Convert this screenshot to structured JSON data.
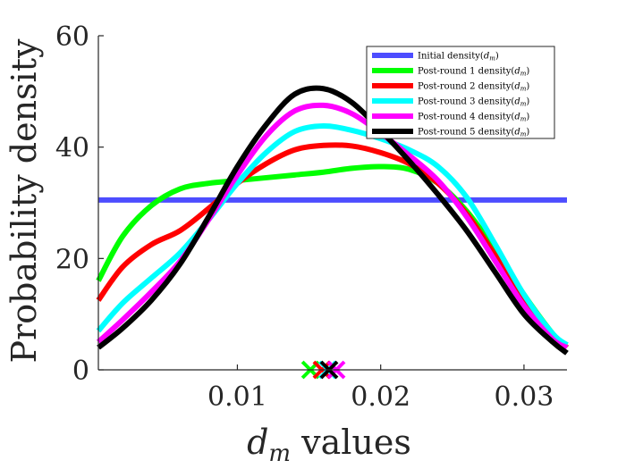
{
  "chart_data": {
    "type": "line",
    "xlabel_symbol": "d",
    "xlabel_subscript": "m",
    "xlabel_rest": " values",
    "ylabel": "Probability density",
    "xlim": [
      0.0003,
      0.033
    ],
    "ylim": [
      0,
      60
    ],
    "xticks": [
      {
        "value": 0.01,
        "label": "0.01"
      },
      {
        "value": 0.02,
        "label": "0.02"
      },
      {
        "value": 0.03,
        "label": "0.03"
      }
    ],
    "yticks": [
      {
        "value": 0,
        "label": "0"
      },
      {
        "value": 20,
        "label": "20"
      },
      {
        "value": 40,
        "label": "40"
      },
      {
        "value": 60,
        "label": "60"
      }
    ],
    "grid": false,
    "legend_position": "top-right",
    "series": [
      {
        "name": "Initial density(d_m)",
        "legend_prefix": "Initial density(",
        "color": "#4d4dff",
        "points": [
          [
            0.0003,
            30.5
          ],
          [
            0.033,
            30.5
          ]
        ]
      },
      {
        "name": "Post-round 1 density(d_m)",
        "legend_prefix": "Post-round 1 density(",
        "color": "#00ff00",
        "points": [
          [
            0.0003,
            16
          ],
          [
            0.002,
            24
          ],
          [
            0.004,
            29.5
          ],
          [
            0.006,
            32.5
          ],
          [
            0.008,
            33.5
          ],
          [
            0.01,
            34
          ],
          [
            0.012,
            34.5
          ],
          [
            0.014,
            35
          ],
          [
            0.016,
            35.5
          ],
          [
            0.018,
            36.2
          ],
          [
            0.02,
            36.5
          ],
          [
            0.022,
            36
          ],
          [
            0.024,
            33.5
          ],
          [
            0.026,
            28.5
          ],
          [
            0.028,
            21.5
          ],
          [
            0.03,
            13.5
          ],
          [
            0.032,
            6.5
          ],
          [
            0.033,
            4
          ]
        ]
      },
      {
        "name": "Post-round 2 density(d_m)",
        "legend_prefix": "Post-round 2 density(",
        "color": "#ff0000",
        "points": [
          [
            0.0003,
            12.5
          ],
          [
            0.002,
            18.5
          ],
          [
            0.004,
            22.5
          ],
          [
            0.006,
            25
          ],
          [
            0.008,
            29
          ],
          [
            0.01,
            33.5
          ],
          [
            0.012,
            37
          ],
          [
            0.014,
            39.5
          ],
          [
            0.016,
            40.3
          ],
          [
            0.018,
            40.2
          ],
          [
            0.02,
            39
          ],
          [
            0.022,
            37
          ],
          [
            0.024,
            33.5
          ],
          [
            0.026,
            28
          ],
          [
            0.028,
            20.5
          ],
          [
            0.03,
            12.5
          ],
          [
            0.032,
            6
          ],
          [
            0.033,
            4
          ]
        ]
      },
      {
        "name": "Post-round 3 density(d_m)",
        "legend_prefix": "Post-round 3 density(",
        "color": "#00ffff",
        "points": [
          [
            0.0003,
            7
          ],
          [
            0.002,
            12
          ],
          [
            0.004,
            16.5
          ],
          [
            0.006,
            21
          ],
          [
            0.008,
            27
          ],
          [
            0.01,
            33.5
          ],
          [
            0.012,
            39
          ],
          [
            0.014,
            42.8
          ],
          [
            0.016,
            43.8
          ],
          [
            0.018,
            43
          ],
          [
            0.02,
            41.5
          ],
          [
            0.022,
            39.5
          ],
          [
            0.024,
            36.5
          ],
          [
            0.026,
            31
          ],
          [
            0.028,
            22.5
          ],
          [
            0.03,
            13.5
          ],
          [
            0.032,
            6.5
          ],
          [
            0.033,
            4.5
          ]
        ]
      },
      {
        "name": "Post-round 4 density(d_m)",
        "legend_prefix": "Post-round 4 density(",
        "color": "#ff00ff",
        "points": [
          [
            0.0003,
            5
          ],
          [
            0.002,
            9
          ],
          [
            0.004,
            14
          ],
          [
            0.006,
            19.5
          ],
          [
            0.008,
            27
          ],
          [
            0.01,
            35
          ],
          [
            0.012,
            42
          ],
          [
            0.014,
            46.5
          ],
          [
            0.016,
            47.5
          ],
          [
            0.018,
            46
          ],
          [
            0.02,
            42.5
          ],
          [
            0.022,
            38.5
          ],
          [
            0.024,
            34
          ],
          [
            0.026,
            27.5
          ],
          [
            0.028,
            19.5
          ],
          [
            0.03,
            11.5
          ],
          [
            0.032,
            5.5
          ],
          [
            0.033,
            4
          ]
        ]
      },
      {
        "name": "Post-round 5 density(d_m)",
        "legend_prefix": "Post-round 5 density(",
        "color": "#000000",
        "points": [
          [
            0.0003,
            4
          ],
          [
            0.002,
            7.5
          ],
          [
            0.004,
            12.5
          ],
          [
            0.006,
            19
          ],
          [
            0.008,
            27.5
          ],
          [
            0.01,
            36.5
          ],
          [
            0.012,
            44
          ],
          [
            0.014,
            49.5
          ],
          [
            0.016,
            50.5
          ],
          [
            0.018,
            48
          ],
          [
            0.02,
            43
          ],
          [
            0.022,
            37.5
          ],
          [
            0.024,
            31.5
          ],
          [
            0.026,
            25
          ],
          [
            0.028,
            17.5
          ],
          [
            0.03,
            10
          ],
          [
            0.032,
            5
          ],
          [
            0.033,
            3
          ]
        ]
      }
    ],
    "markers": [
      {
        "series": "Post-round 1 density(d_m)",
        "x": 0.0151,
        "y": 0,
        "color": "#00ff00"
      },
      {
        "series": "Post-round 2 density(d_m)",
        "x": 0.0159,
        "y": 0,
        "color": "#ff0000"
      },
      {
        "series": "Post-round 3 density(d_m)",
        "x": 0.0163,
        "y": 0,
        "color": "#00ffff"
      },
      {
        "series": "Post-round 4 density(d_m)",
        "x": 0.0169,
        "y": 0,
        "color": "#ff00ff"
      },
      {
        "series": "Post-round 5 density(d_m)",
        "x": 0.0164,
        "y": 0,
        "color": "#000000"
      }
    ]
  }
}
